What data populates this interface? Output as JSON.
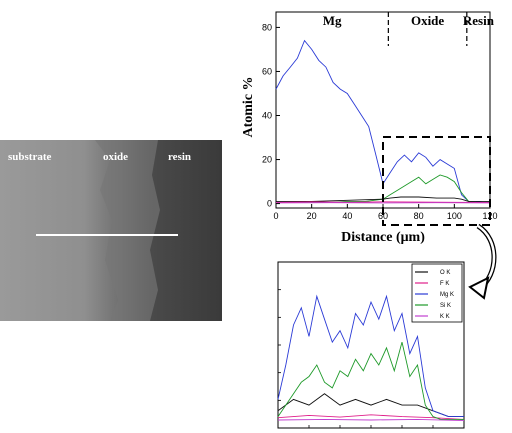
{
  "micrograph": {
    "labels": {
      "substrate": "substrate",
      "oxide": "oxide",
      "resin": "resin"
    }
  },
  "chart_data": [
    {
      "type": "line",
      "xlabel": "Distance (μm)",
      "ylabel": "Atomic %",
      "xlim": [
        0,
        120
      ],
      "ylim": [
        -2,
        87
      ],
      "xticks": [
        "0",
        "20",
        "40",
        "60",
        "80",
        "100",
        "120"
      ],
      "yticks": [
        "0",
        "20",
        "40",
        "60",
        "80"
      ],
      "regions": [
        {
          "label": "Mg",
          "x_start": 0,
          "x_end": 63
        },
        {
          "label": "Oxide",
          "x_start": 63,
          "x_end": 107
        },
        {
          "label": "Resin",
          "x_start": 107,
          "x_end": 120
        }
      ],
      "series": [
        {
          "name": "Mg K",
          "color": "#2b3bd6",
          "x": [
            0,
            4,
            8,
            12,
            16,
            20,
            24,
            28,
            32,
            36,
            40,
            44,
            48,
            52,
            56,
            60,
            64,
            68,
            72,
            76,
            80,
            84,
            88,
            92,
            96,
            100,
            104,
            108,
            112,
            116,
            120
          ],
          "y": [
            52,
            58,
            62,
            66,
            74,
            70,
            65,
            62,
            55,
            52,
            50,
            45,
            40,
            35,
            22,
            9,
            14,
            19,
            22,
            19,
            23,
            21,
            17,
            20,
            18,
            16,
            4,
            1,
            1,
            0.5,
            0.5
          ]
        },
        {
          "name": "Si K",
          "color": "#1f9a2a",
          "x": [
            0,
            10,
            20,
            30,
            40,
            50,
            60,
            64,
            68,
            72,
            76,
            80,
            84,
            88,
            92,
            96,
            100,
            104,
            108,
            112,
            116,
            120
          ],
          "y": [
            0.5,
            0.5,
            0.5,
            0.5,
            1,
            1,
            2,
            4,
            6,
            8,
            10,
            12,
            9,
            11,
            13,
            12,
            10,
            5,
            1,
            0.5,
            0.5,
            0.5
          ]
        },
        {
          "name": "O K",
          "color": "#111111",
          "x": [
            0,
            20,
            40,
            60,
            64,
            70,
            80,
            90,
            100,
            104,
            108,
            120
          ],
          "y": [
            1,
            1,
            1.5,
            2,
            2.5,
            3,
            3,
            2.5,
            2.5,
            2,
            1,
            1
          ]
        },
        {
          "name": "F K",
          "color": "#e0208a",
          "x": [
            0,
            20,
            40,
            60,
            80,
            100,
            120
          ],
          "y": [
            0.5,
            0.8,
            0.6,
            0.8,
            0.7,
            0.6,
            0.5
          ]
        },
        {
          "name": "K K",
          "color": "#c040d0",
          "x": [
            0,
            30,
            60,
            90,
            120
          ],
          "y": [
            0.3,
            0.4,
            0.3,
            0.4,
            0.3
          ]
        }
      ]
    },
    {
      "type": "line",
      "description_zoom_of": "boxed region of the main profile",
      "xlim": [
        62,
        110
      ],
      "ylim": [
        -1,
        28
      ],
      "legend": [
        "O K",
        "F K",
        "Mg K",
        "Si K",
        "K K"
      ],
      "series": [
        {
          "name": "O K",
          "color": "#111111",
          "x": [
            62,
            66,
            70,
            74,
            78,
            82,
            86,
            90,
            94,
            98,
            102,
            106,
            110
          ],
          "y": [
            2,
            4,
            3,
            5,
            3,
            4,
            3,
            4,
            3,
            3,
            2,
            1,
            1
          ]
        },
        {
          "name": "F K",
          "color": "#e0208a",
          "x": [
            62,
            70,
            78,
            86,
            94,
            102,
            110
          ],
          "y": [
            0.8,
            1.2,
            0.9,
            1.3,
            1,
            0.8,
            0.5
          ]
        },
        {
          "name": "Mg K",
          "color": "#2b3bd6",
          "x": [
            62,
            64,
            66,
            68,
            70,
            72,
            74,
            76,
            78,
            80,
            82,
            84,
            86,
            88,
            90,
            92,
            94,
            96,
            98,
            100,
            102,
            104,
            106,
            108,
            110
          ],
          "y": [
            4,
            10,
            17,
            20,
            15,
            22,
            18,
            14,
            16,
            13,
            19,
            17,
            21,
            18,
            22,
            16,
            19,
            12,
            15,
            6,
            2,
            1.5,
            1,
            1,
            1
          ]
        },
        {
          "name": "Si K",
          "color": "#1f9a2a",
          "x": [
            62,
            64,
            66,
            68,
            70,
            72,
            74,
            76,
            78,
            80,
            82,
            84,
            86,
            88,
            90,
            92,
            94,
            96,
            98,
            100,
            102,
            104,
            106,
            108,
            110
          ],
          "y": [
            1,
            3,
            5,
            7,
            8,
            10,
            7,
            6,
            9,
            8,
            11,
            9,
            12,
            10,
            13,
            9,
            14,
            8,
            10,
            3,
            1,
            0.5,
            0.5,
            0.5,
            0.5
          ]
        },
        {
          "name": "K K",
          "color": "#c040d0",
          "x": [
            62,
            74,
            86,
            98,
            110
          ],
          "y": [
            0.4,
            0.5,
            0.4,
            0.5,
            0.3
          ]
        }
      ]
    }
  ]
}
